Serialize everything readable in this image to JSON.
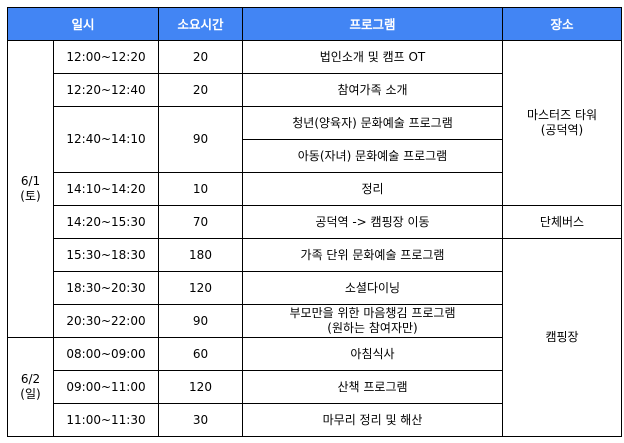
{
  "header_color": "#4285f4",
  "headers": {
    "datetime": "일시",
    "duration": "소요시간",
    "program": "프로그램",
    "place": "장소"
  },
  "days": [
    {
      "date": "6/1",
      "weekday": "(토)"
    },
    {
      "date": "6/2",
      "weekday": "(일)"
    }
  ],
  "rows": [
    {
      "time": "12:00~12:20",
      "minutes": "20",
      "program": "법인소개 및 캠프 OT"
    },
    {
      "time": "12:20~12:40",
      "minutes": "20",
      "program": "참여가족 소개"
    },
    {
      "time": "12:40~14:10",
      "minutes": "90",
      "program": "청년(양육자) 문화예술 프로그램",
      "program2": "아동(자녀) 문화예술 프로그램"
    },
    {
      "time": "14:10~14:20",
      "minutes": "10",
      "program": "정리"
    },
    {
      "time": "14:20~15:30",
      "minutes": "70",
      "program": "공덕역 -> 캠핑장 이동"
    },
    {
      "time": "15:30~18:30",
      "minutes": "180",
      "program": "가족 단위 문화예술 프로그램"
    },
    {
      "time": "18:30~20:30",
      "minutes": "120",
      "program": "소셜다이닝"
    },
    {
      "time": "20:30~22:00",
      "minutes": "90",
      "program": "부모만을 위한 마음챙김 프로그램",
      "program_sub": "(원하는 참여자만)"
    },
    {
      "time": "08:00~09:00",
      "minutes": "60",
      "program": "아침식사"
    },
    {
      "time": "09:00~11:00",
      "minutes": "120",
      "program": "산책 프로그램"
    },
    {
      "time": "11:00~11:30",
      "minutes": "30",
      "program": "마무리 정리 및 해산"
    }
  ],
  "places": {
    "tower": "마스터즈 타워",
    "tower_sub": "(공덕역)",
    "bus": "단체버스",
    "camp": "캠핑장"
  }
}
